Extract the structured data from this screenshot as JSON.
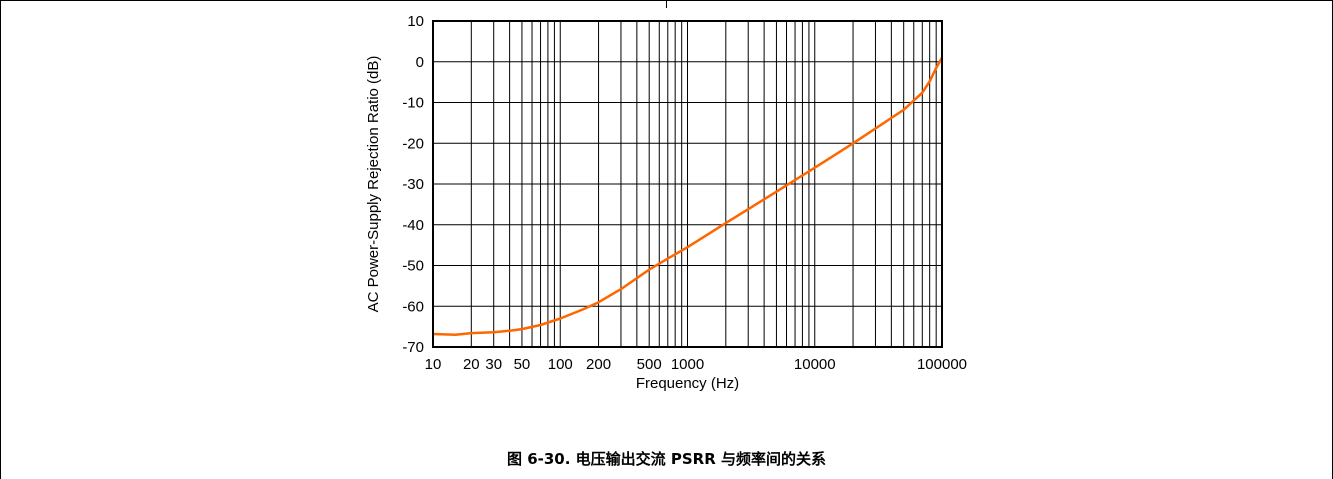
{
  "caption": "图 6-30. 电压输出交流 PSRR 与频率间的关系",
  "colors": {
    "series": "#ff6600",
    "grid": "#000000"
  },
  "chart_data": {
    "type": "line",
    "xscale": "log",
    "xlabel": "Frequency (Hz)",
    "ylabel": "AC Power-Supply Rejection Ratio (dB)",
    "xlim": [
      10,
      100000
    ],
    "ylim": [
      -70,
      10
    ],
    "grid": true,
    "xticks": [
      10,
      20,
      30,
      50,
      100,
      200,
      500,
      1000,
      10000,
      100000
    ],
    "xtick_labels": [
      "10",
      "20",
      "30",
      "50",
      "100",
      "200",
      "500",
      "1000",
      "10000",
      "100000"
    ],
    "yticks": [
      10,
      0,
      -10,
      -20,
      -30,
      -40,
      -50,
      -60,
      -70
    ],
    "ytick_labels": [
      "10",
      "0",
      "-10",
      "-20",
      "-30",
      "-40",
      "-50",
      "-60",
      "-70"
    ],
    "series": [
      {
        "x": [
          10,
          15,
          20,
          30,
          40,
          50,
          70,
          100,
          150,
          200,
          300,
          500,
          700,
          1000,
          2000,
          5000,
          10000,
          20000,
          50000,
          70000,
          80000,
          90000,
          100000
        ],
        "y": [
          -66.8,
          -67.0,
          -66.6,
          -66.4,
          -66.0,
          -65.6,
          -64.6,
          -63.0,
          -60.8,
          -59.0,
          -55.8,
          -51.0,
          -48.3,
          -45.5,
          -39.6,
          -31.9,
          -26.0,
          -20.0,
          -11.8,
          -7.6,
          -4.8,
          -1.5,
          1.0
        ]
      }
    ]
  }
}
